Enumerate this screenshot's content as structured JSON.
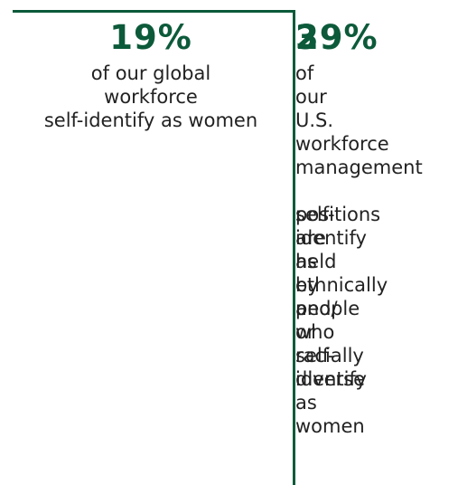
{
  "stats": [
    {
      "value": "19%",
      "caption_lines": [
        "of our global",
        "workforce",
        "self-identify as women"
      ]
    },
    {
      "value": "39%",
      "value_overlap": "2",
      "caption": "of our U.S. workforce management",
      "caption_overlap": "positions are held by people who self-identify as women",
      "caption_overlap_b": "self-identify as ethnically and/ or racially diverse"
    }
  ],
  "colors": {
    "accent": "#0c5a3a",
    "text": "#222222"
  }
}
